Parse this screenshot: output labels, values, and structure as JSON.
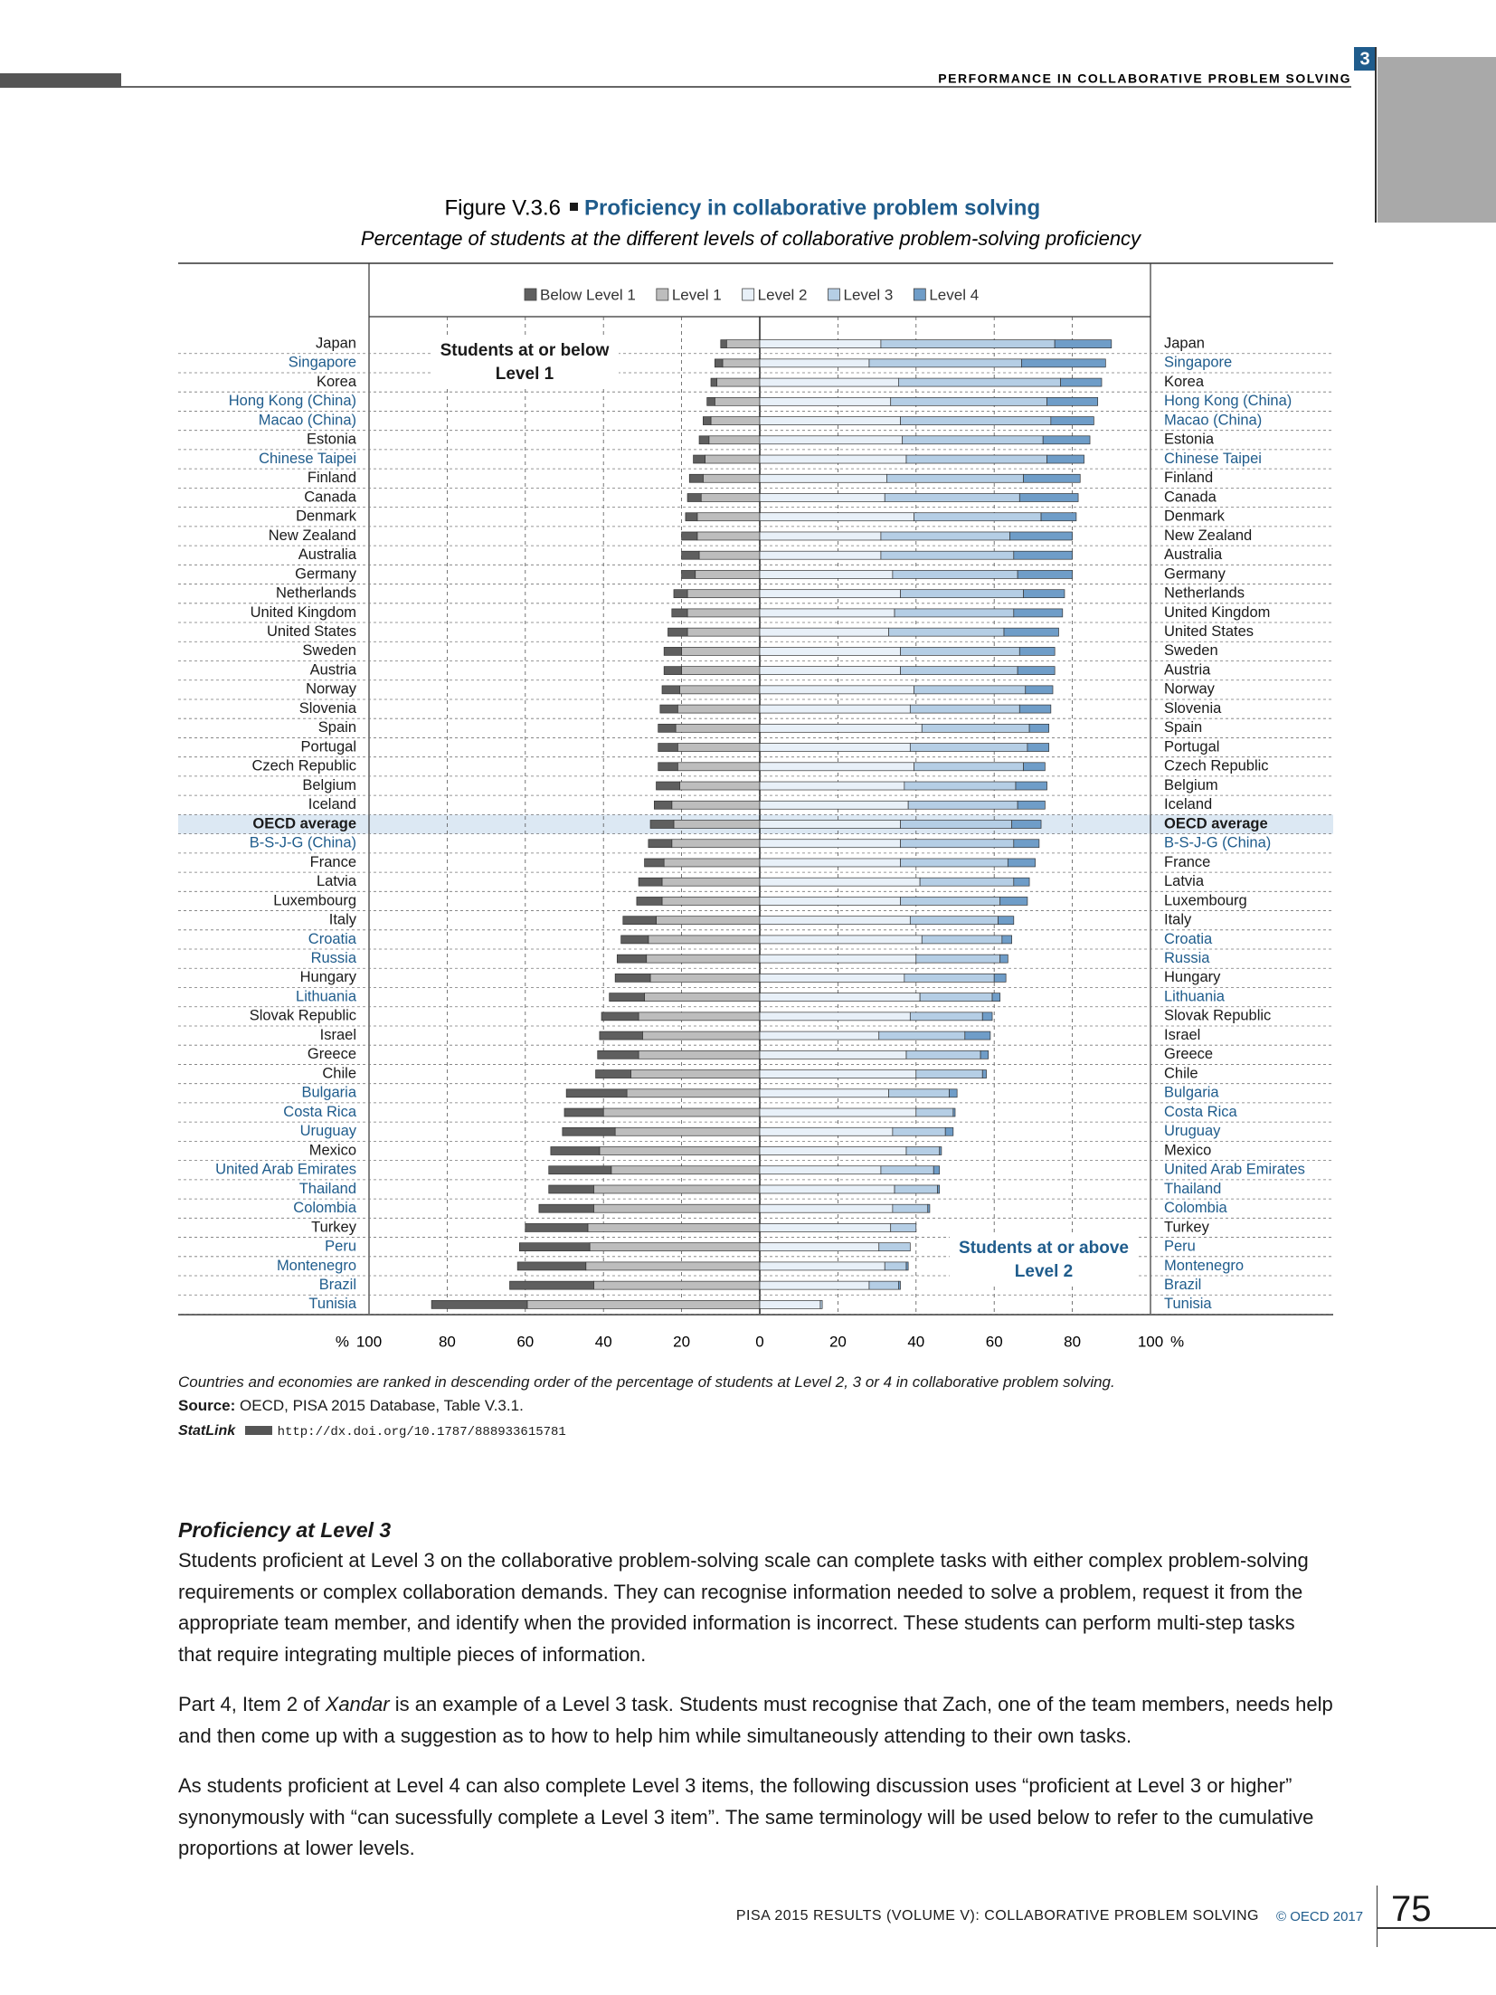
{
  "header": {
    "section_number": "3",
    "running_title": "PERFORMANCE IN COLLABORATIVE PROBLEM SOLVING"
  },
  "chart_data": {
    "type": "diverging-stacked-bar",
    "label": "Figure V.3.6",
    "title": "Proficiency in collaborative problem solving",
    "subtitle": "Percentage of students at the different levels of collaborative problem-solving proficiency",
    "annotations": [
      "Students at or below Level 1",
      "Students at or above Level 2"
    ],
    "x_unit": "%",
    "categories": [
      "Japan",
      "Singapore",
      "Korea",
      "Hong Kong (China)",
      "Macao (China)",
      "Estonia",
      "Chinese Taipei",
      "Finland",
      "Canada",
      "Denmark",
      "New Zealand",
      "Australia",
      "Germany",
      "Netherlands",
      "United Kingdom",
      "United States",
      "Sweden",
      "Austria",
      "Norway",
      "Slovenia",
      "Spain",
      "Portugal",
      "Czech Republic",
      "Belgium",
      "Iceland",
      "OECD average",
      "B-S-J-G (China)",
      "France",
      "Latvia",
      "Luxembourg",
      "Italy",
      "Croatia",
      "Russia",
      "Hungary",
      "Lithuania",
      "Slovak Republic",
      "Israel",
      "Greece",
      "Chile",
      "Bulgaria",
      "Costa Rica",
      "Uruguay",
      "Mexico",
      "United Arab Emirates",
      "Thailand",
      "Colombia",
      "Turkey",
      "Peru",
      "Montenegro",
      "Brazil",
      "Tunisia"
    ],
    "category_colors": [
      "#1a1a1a",
      "#1f5c8c",
      "#1a1a1a",
      "#1f5c8c",
      "#1f5c8c",
      "#1a1a1a",
      "#1f5c8c",
      "#1a1a1a",
      "#1a1a1a",
      "#1a1a1a",
      "#1a1a1a",
      "#1a1a1a",
      "#1a1a1a",
      "#1a1a1a",
      "#1a1a1a",
      "#1a1a1a",
      "#1a1a1a",
      "#1a1a1a",
      "#1a1a1a",
      "#1a1a1a",
      "#1a1a1a",
      "#1a1a1a",
      "#1a1a1a",
      "#1a1a1a",
      "#1a1a1a",
      "#1a1a1a",
      "#1f5c8c",
      "#1a1a1a",
      "#1a1a1a",
      "#1a1a1a",
      "#1a1a1a",
      "#1f5c8c",
      "#1f5c8c",
      "#1a1a1a",
      "#1f5c8c",
      "#1a1a1a",
      "#1a1a1a",
      "#1a1a1a",
      "#1a1a1a",
      "#1f5c8c",
      "#1f5c8c",
      "#1f5c8c",
      "#1a1a1a",
      "#1f5c8c",
      "#1f5c8c",
      "#1f5c8c",
      "#1a1a1a",
      "#1f5c8c",
      "#1f5c8c",
      "#1f5c8c",
      "#1f5c8c"
    ],
    "highlight_row": 25,
    "highlight_color": "#dce8f3",
    "series": [
      {
        "name": "Below Level 1",
        "color": "#5f5f5f",
        "direction": "left",
        "values": [
          1.5,
          2,
          1.5,
          2,
          2,
          2.5,
          3,
          3.5,
          3.5,
          3,
          4,
          4.5,
          3.5,
          3.5,
          4,
          5,
          4.5,
          4.5,
          4.5,
          4.5,
          4.5,
          5,
          5,
          6,
          4.5,
          6,
          6,
          5,
          6,
          6.5,
          8.5,
          7,
          7.5,
          9,
          9,
          9.5,
          11,
          10.5,
          9,
          15.5,
          10,
          13.5,
          12.5,
          16,
          11.5,
          14,
          16,
          18,
          17.5,
          21.5,
          24.5
        ]
      },
      {
        "name": "Level 1",
        "color": "#bdbdbd",
        "direction": "left",
        "values": [
          8.5,
          9.5,
          11,
          11.5,
          12.5,
          13,
          14,
          14.5,
          15,
          16,
          16,
          15.5,
          16.5,
          18.5,
          18.5,
          18.5,
          20,
          20,
          20.5,
          21,
          21.5,
          21,
          21,
          20.5,
          22.5,
          22,
          22.5,
          24.5,
          25,
          25,
          26.5,
          28.5,
          29,
          28,
          29.5,
          31,
          30,
          31,
          33,
          34,
          40,
          37,
          41,
          38,
          42.5,
          42.5,
          44,
          43.5,
          44.5,
          42.5,
          59.5
        ]
      },
      {
        "name": "Level 2",
        "color": "#e8f0f8",
        "direction": "right",
        "values": [
          31,
          28,
          35.5,
          33.5,
          36,
          36.5,
          37.5,
          32.5,
          32,
          39.5,
          31,
          31,
          34,
          36,
          34.5,
          33,
          36,
          36,
          39.5,
          38.5,
          41.5,
          38.5,
          39.5,
          37,
          38,
          36,
          36,
          36,
          41,
          36,
          38.5,
          41.5,
          40,
          37,
          41,
          38.5,
          30.5,
          37.5,
          40,
          33,
          40,
          34,
          37.5,
          31,
          34.5,
          34,
          33.5,
          30.5,
          32,
          28,
          15.5
        ]
      },
      {
        "name": "Level 3",
        "color": "#b5cee5",
        "direction": "right",
        "values": [
          44.5,
          39,
          41.5,
          40,
          38.5,
          36,
          36,
          35,
          34.5,
          32.5,
          33,
          34,
          32,
          31.5,
          30.5,
          29.5,
          30.5,
          30,
          28.5,
          28,
          27.5,
          30,
          28,
          28.5,
          28,
          28.5,
          29,
          27.5,
          24,
          25.5,
          22.5,
          20.5,
          21.5,
          23,
          18.5,
          18.5,
          22,
          19,
          17,
          15.5,
          9.5,
          13.5,
          8.5,
          13.5,
          11,
          9,
          6.5,
          8,
          5.5,
          7.5,
          0.5
        ]
      },
      {
        "name": "Level 4",
        "color": "#6f9dc8",
        "direction": "right",
        "values": [
          14.5,
          21.5,
          10.5,
          13,
          11,
          12,
          9.5,
          14.5,
          15,
          9,
          16,
          15,
          14,
          10.5,
          12.5,
          14,
          9,
          9.5,
          7,
          8,
          5,
          5.5,
          5.5,
          8,
          7,
          7.5,
          6.5,
          7,
          4,
          7,
          4,
          2.5,
          2,
          3,
          2,
          2.5,
          6.5,
          2,
          1,
          2,
          0.5,
          2,
          0.5,
          1.5,
          0.5,
          0.5,
          0,
          0,
          0.5,
          0.5,
          0
        ]
      }
    ],
    "xlim": [
      -100,
      100
    ],
    "xticks": [
      {
        "value": -100,
        "label": "100"
      },
      {
        "value": -80,
        "label": "80"
      },
      {
        "value": -60,
        "label": "60"
      },
      {
        "value": -40,
        "label": "40"
      },
      {
        "value": -20,
        "label": "20"
      },
      0,
      20,
      40,
      60,
      80,
      100
    ],
    "grid": true
  },
  "notes": {
    "note": "Countries and economies are ranked in descending order of the percentage of students at Level 2, 3 or 4 in collaborative problem solving.",
    "source_label": "Source:",
    "source": "OECD, PISA 2015 Database, Table V.3.1.",
    "statlink_label": "StatLink",
    "statlink_url": "http://dx.doi.org/10.1787/888933615781"
  },
  "body": {
    "heading": "Proficiency at Level 3",
    "paragraph_1": "Students proficient at Level 3 on the collaborative problem-solving scale can complete tasks with either complex problem-solving requirements or complex collaboration demands. They can recognise information needed to solve a problem, request it from the appropriate team member, and identify when the provided information is incorrect. These students can perform multi-step tasks that require integrating multiple pieces of information.",
    "paragraph_2": {
      "before": "Part 4, Item 2 of ",
      "emphasis": "Xandar",
      "after": " is an example of a Level 3 task. Students must recognise that Zach, one of the team members, needs help and then come up with a suggestion as to how to help him while simultaneously attending to their own tasks."
    },
    "paragraph_3": "As students proficient at Level 4 can also complete Level 3 items, the following discussion uses “proficient at Level 3 or higher” synonymously with “can sucessfully complete a Level 3 item”. The same terminology will be used below to refer to the cumulative proportions at lower levels."
  },
  "footer": {
    "publication": "PISA 2015 RESULTS (VOLUME V): COLLABORATIVE PROBLEM SOLVING",
    "copyright": "© OECD 2017",
    "page": "75"
  }
}
